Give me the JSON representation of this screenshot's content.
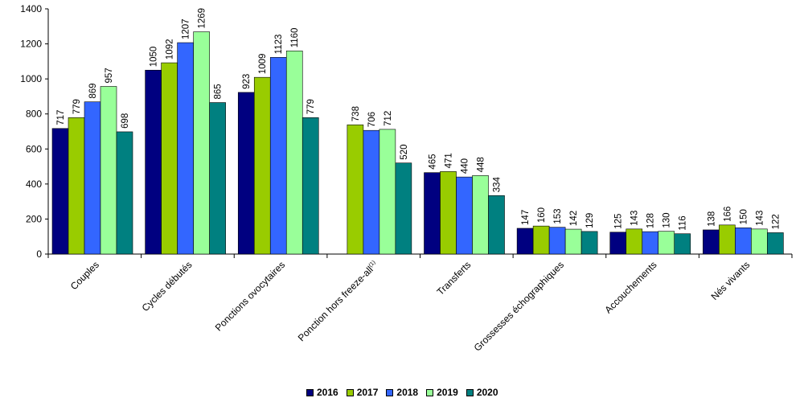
{
  "chart_data": {
    "type": "bar",
    "title": "",
    "xlabel": "",
    "ylabel": "",
    "ylim": [
      0,
      1400
    ],
    "yticks": [
      0,
      200,
      400,
      600,
      800,
      1000,
      1200,
      1400
    ],
    "categories": [
      "Couples",
      "Cycles débutés",
      "Ponctions ovocytaires",
      "Ponction hors freeze-all",
      "Transferts",
      "Grossesses échographiques",
      "Accouchements",
      "Nés vivants"
    ],
    "category_footnote": {
      "index": 3,
      "mark": "(1)"
    },
    "series": [
      {
        "name": "2016",
        "color": "#000080",
        "values": [
          717,
          1050,
          923,
          null,
          465,
          147,
          125,
          138
        ]
      },
      {
        "name": "2017",
        "color": "#99cc00",
        "values": [
          779,
          1092,
          1009,
          738,
          471,
          160,
          143,
          166
        ]
      },
      {
        "name": "2018",
        "color": "#3366ff",
        "values": [
          869,
          1207,
          1123,
          706,
          440,
          153,
          128,
          150
        ]
      },
      {
        "name": "2019",
        "color": "#99ff99",
        "values": [
          957,
          1269,
          1160,
          712,
          448,
          142,
          130,
          143
        ]
      },
      {
        "name": "2020",
        "color": "#008080",
        "values": [
          698,
          865,
          779,
          520,
          334,
          129,
          116,
          122
        ]
      }
    ],
    "grid": false,
    "legend_position": "bottom-center",
    "data_labels": true
  }
}
